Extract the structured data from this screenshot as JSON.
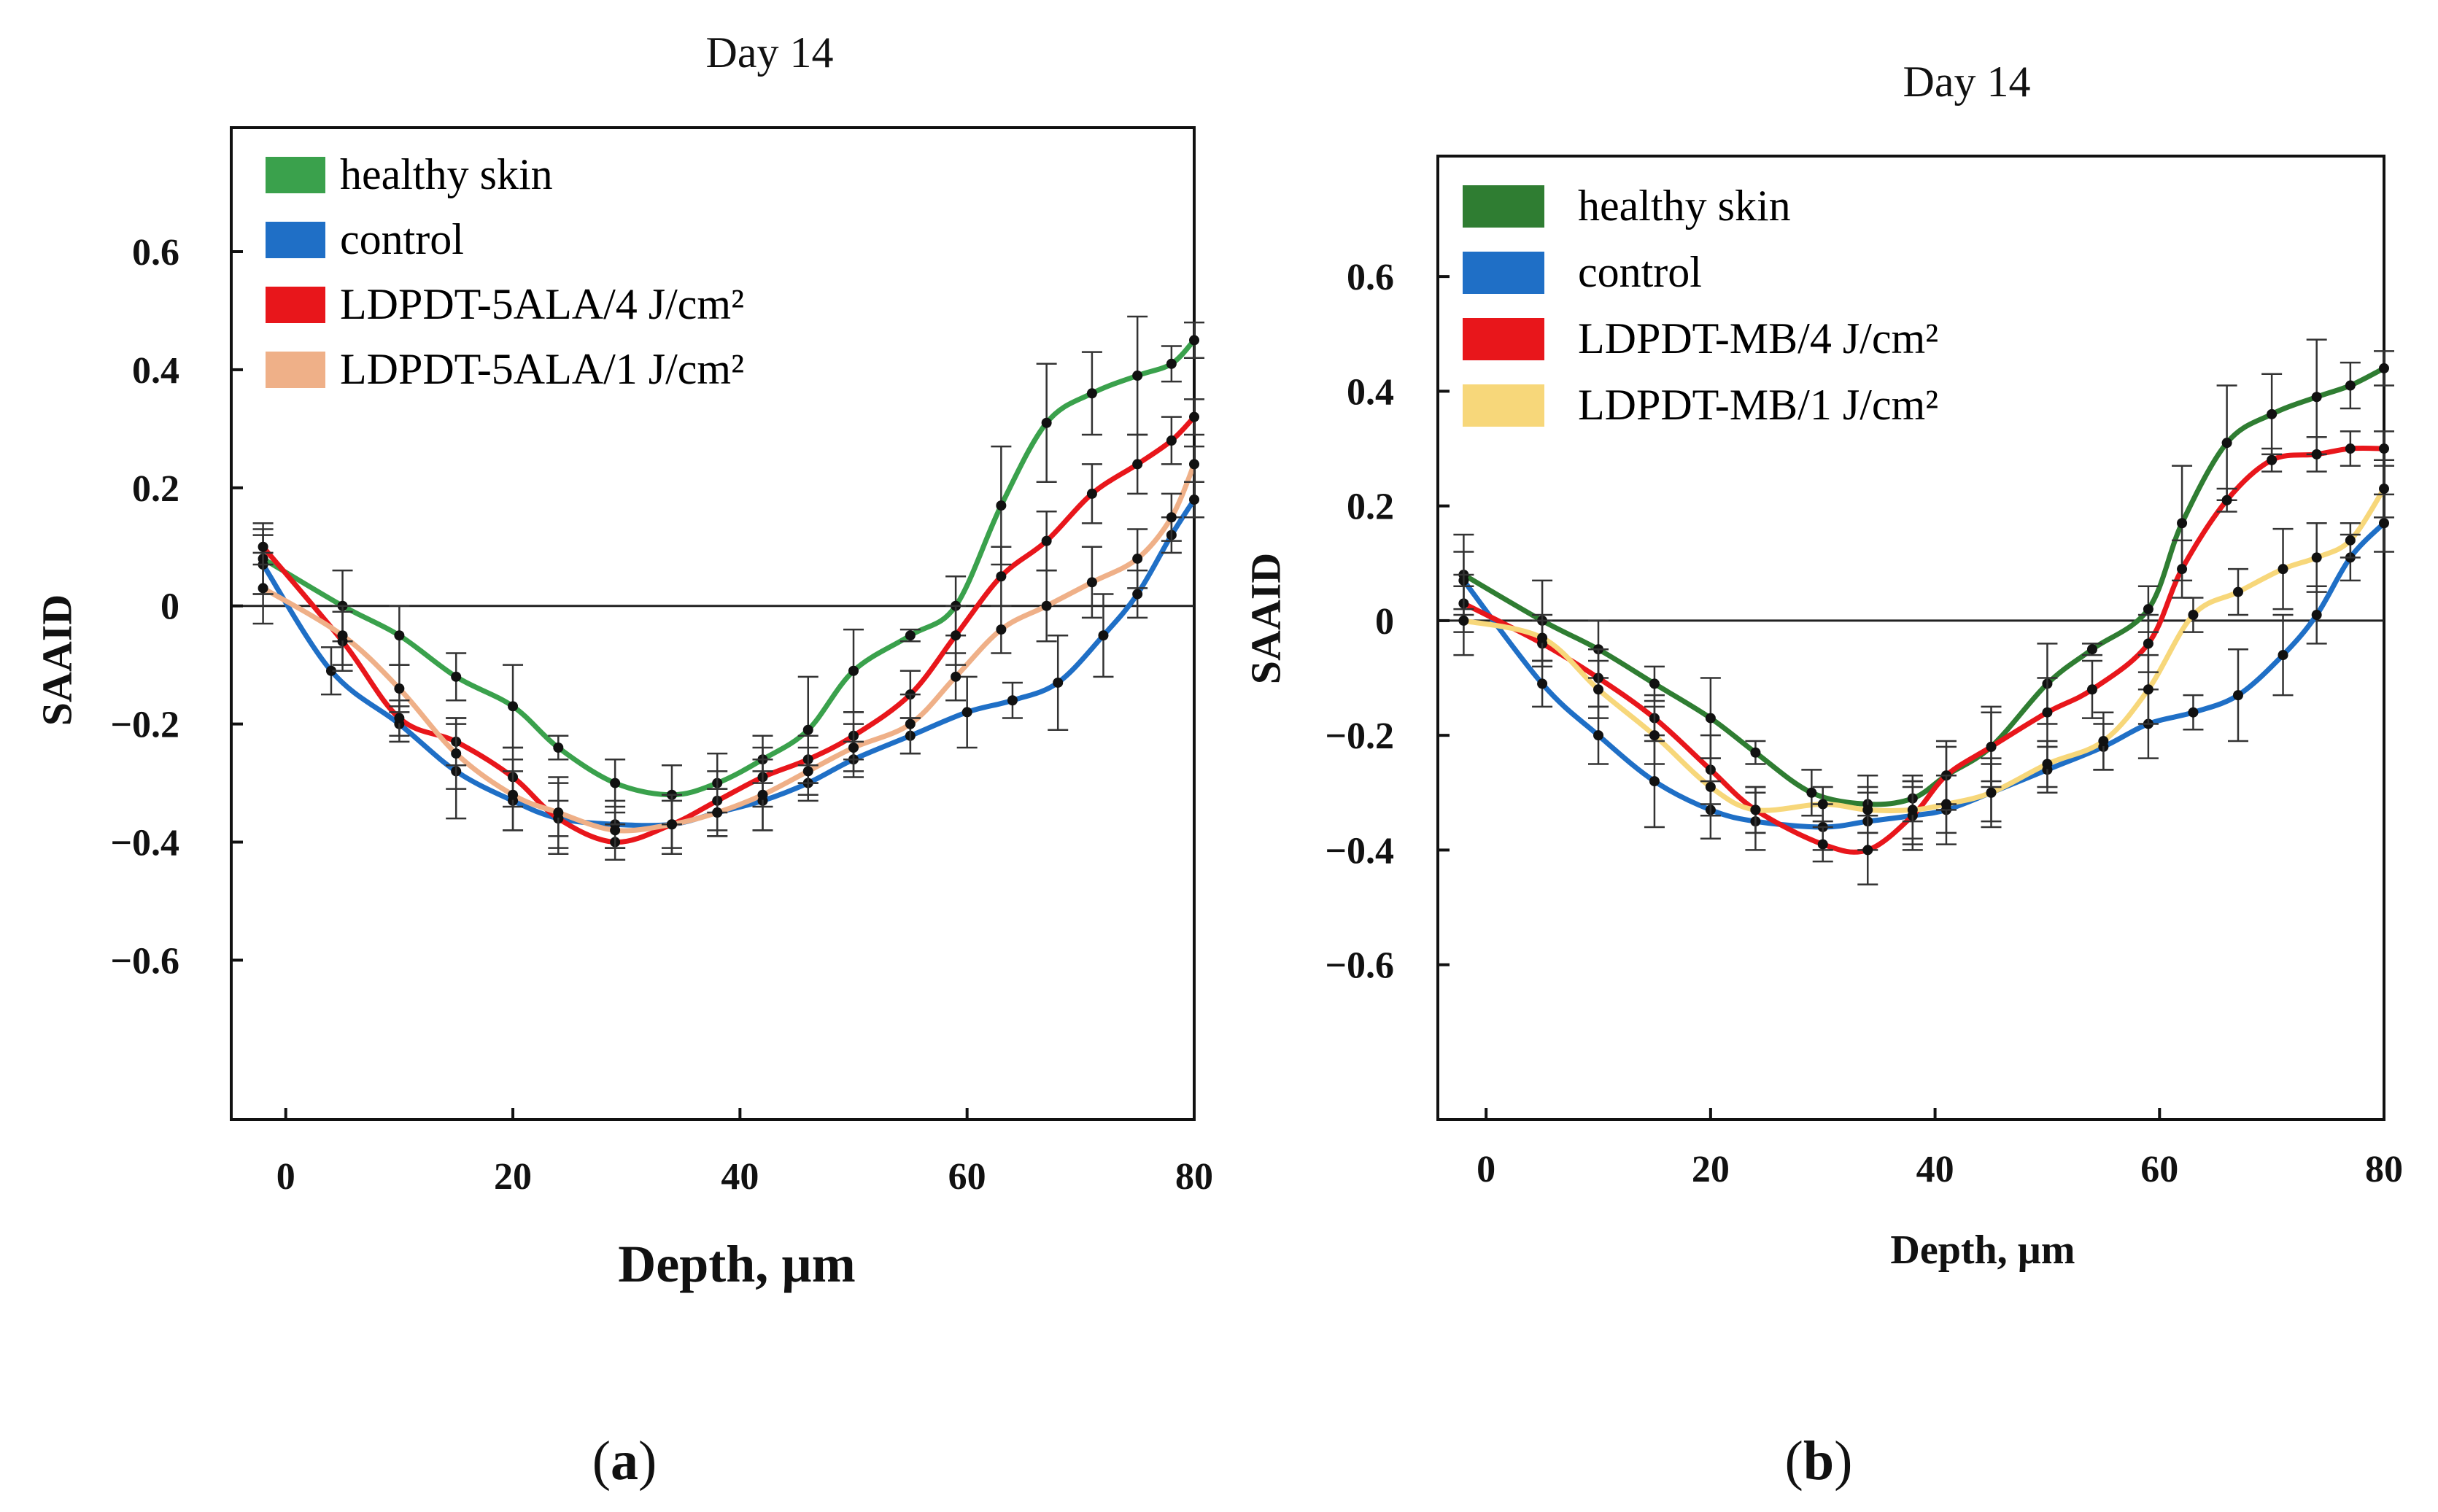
{
  "chart_data": [
    {
      "type": "line",
      "panel_label": "a",
      "title": "Day 14",
      "xlabel": "Depth, µm",
      "ylabel": "SAAID",
      "xlim": [
        -4.8,
        80
      ],
      "ylim": [
        -0.87,
        0.81
      ],
      "xticks": [
        0,
        20,
        40,
        60,
        80
      ],
      "yticks": [
        0.6,
        0.4,
        0.2,
        0,
        -0.2,
        -0.4,
        -0.6
      ],
      "ytick_labels": [
        "0.6",
        "0.4",
        "0.2",
        "0",
        "−0.2",
        "−0.4",
        "−0.6"
      ],
      "zero_line": true,
      "legend_position": "top-left",
      "series": [
        {
          "name": "healthy skin",
          "color": "#3aa14c",
          "x": [
            -2,
            5,
            10,
            15,
            20,
            24,
            29,
            34,
            38,
            42,
            46,
            50,
            55,
            59,
            63,
            67,
            71,
            75,
            78,
            80
          ],
          "y": [
            0.08,
            0.0,
            -0.05,
            -0.12,
            -0.17,
            -0.24,
            -0.3,
            -0.32,
            -0.3,
            -0.26,
            -0.21,
            -0.11,
            -0.05,
            0.0,
            0.17,
            0.31,
            0.36,
            0.39,
            0.41,
            0.45
          ],
          "err": [
            0.06,
            0.06,
            0.05,
            0.04,
            0.07,
            0.02,
            0.04,
            0.05,
            0.05,
            0.04,
            0.09,
            0.07,
            0.01,
            0.05,
            0.1,
            0.1,
            0.07,
            0.1,
            0.03,
            0.03
          ]
        },
        {
          "name": "control",
          "color": "#1f6fc6",
          "x": [
            -2,
            4,
            10,
            15,
            20,
            24,
            29,
            34,
            38,
            42,
            46,
            50,
            55,
            60,
            64,
            68,
            72,
            75,
            78,
            80
          ],
          "y": [
            0.07,
            -0.11,
            -0.2,
            -0.28,
            -0.33,
            -0.36,
            -0.37,
            -0.37,
            -0.35,
            -0.33,
            -0.3,
            -0.26,
            -0.22,
            -0.18,
            -0.16,
            -0.13,
            -0.05,
            0.02,
            0.12,
            0.18
          ],
          "err": [
            0.05,
            0.04,
            0.03,
            0.08,
            0.05,
            0.06,
            0.04,
            0.05,
            0.04,
            0.05,
            0.03,
            0.03,
            0.03,
            0.06,
            0.03,
            0.08,
            0.07,
            0.04,
            0.03,
            0.03
          ]
        },
        {
          "name": "LDPDT-5ALA/4 J/cm²",
          "color": "#e8161b",
          "x": [
            -2,
            5,
            10,
            15,
            20,
            24,
            29,
            34,
            38,
            42,
            46,
            50,
            55,
            59,
            63,
            67,
            71,
            75,
            78,
            80
          ],
          "y": [
            0.1,
            -0.06,
            -0.19,
            -0.23,
            -0.29,
            -0.36,
            -0.4,
            -0.37,
            -0.33,
            -0.29,
            -0.26,
            -0.22,
            -0.15,
            -0.05,
            0.05,
            0.11,
            0.19,
            0.24,
            0.28,
            0.32
          ],
          "err": [
            0.03,
            0.05,
            0.03,
            0.04,
            0.05,
            0.03,
            0.03,
            0.05,
            0.05,
            0.05,
            0.04,
            0.04,
            0.04,
            0.05,
            0.05,
            0.05,
            0.05,
            0.05,
            0.04,
            0.03
          ]
        },
        {
          "name": "LDPDT-5ALA/1 J/cm²",
          "color": "#efb088",
          "x": [
            -2,
            5,
            10,
            15,
            20,
            24,
            29,
            34,
            38,
            42,
            46,
            50,
            55,
            59,
            63,
            67,
            71,
            75,
            78,
            80
          ],
          "y": [
            0.03,
            -0.05,
            -0.14,
            -0.25,
            -0.32,
            -0.35,
            -0.38,
            -0.37,
            -0.35,
            -0.32,
            -0.28,
            -0.24,
            -0.2,
            -0.12,
            -0.04,
            0.0,
            0.04,
            0.08,
            0.15,
            0.24
          ],
          "err": [
            0.06,
            0.05,
            0.04,
            0.06,
            0.06,
            0.06,
            0.03,
            0.04,
            0.04,
            0.06,
            0.04,
            0.04,
            0.05,
            0.04,
            0.04,
            0.06,
            0.06,
            0.05,
            0.04,
            0.03
          ]
        }
      ]
    },
    {
      "type": "line",
      "panel_label": "b",
      "title": "Day 14",
      "xlabel": "Depth, µm",
      "ylabel": "SAAID",
      "xlim": [
        -4.3,
        80
      ],
      "ylim": [
        -0.87,
        0.81
      ],
      "xticks": [
        0,
        20,
        40,
        60,
        80
      ],
      "yticks": [
        0.6,
        0.4,
        0.2,
        0,
        -0.2,
        -0.4,
        -0.6
      ],
      "ytick_labels": [
        "0.6",
        "0.4",
        "0.2",
        "0",
        "−0.2",
        "−0.4",
        "−0.6"
      ],
      "zero_line": true,
      "legend_position": "top-left",
      "series": [
        {
          "name": "healthy skin",
          "color": "#2f7d32",
          "x": [
            -2,
            5,
            10,
            15,
            20,
            24,
            29,
            34,
            38,
            41,
            45,
            50,
            54,
            59,
            62,
            66,
            70,
            74,
            77,
            80
          ],
          "y": [
            0.08,
            0.0,
            -0.05,
            -0.11,
            -0.17,
            -0.23,
            -0.3,
            -0.32,
            -0.31,
            -0.27,
            -0.22,
            -0.11,
            -0.05,
            0.02,
            0.17,
            0.31,
            0.36,
            0.39,
            0.41,
            0.44
          ],
          "err": [
            0.07,
            0.07,
            0.05,
            0.03,
            0.07,
            0.02,
            0.04,
            0.05,
            0.04,
            0.05,
            0.07,
            0.07,
            0.01,
            0.04,
            0.1,
            0.1,
            0.07,
            0.1,
            0.04,
            0.03
          ]
        },
        {
          "name": "control",
          "color": "#1f6fc6",
          "x": [
            -2,
            5,
            10,
            15,
            20,
            24,
            30,
            34,
            38,
            41,
            45,
            50,
            55,
            59,
            63,
            67,
            71,
            74,
            77,
            80
          ],
          "y": [
            0.07,
            -0.11,
            -0.2,
            -0.28,
            -0.33,
            -0.35,
            -0.36,
            -0.35,
            -0.34,
            -0.33,
            -0.3,
            -0.26,
            -0.22,
            -0.18,
            -0.16,
            -0.13,
            -0.06,
            0.01,
            0.11,
            0.17
          ],
          "err": [
            0.05,
            0.04,
            0.05,
            0.08,
            0.05,
            0.05,
            0.04,
            0.05,
            0.05,
            0.06,
            0.06,
            0.04,
            0.04,
            0.06,
            0.03,
            0.08,
            0.07,
            0.05,
            0.04,
            0.05
          ]
        },
        {
          "name": "LDPDT-MB/4 J/cm²",
          "color": "#e8161b",
          "x": [
            -2,
            5,
            10,
            15,
            20,
            24,
            30,
            34,
            38,
            41,
            45,
            50,
            54,
            59,
            62,
            66,
            70,
            74,
            77,
            80
          ],
          "y": [
            0.03,
            -0.04,
            -0.1,
            -0.17,
            -0.26,
            -0.33,
            -0.39,
            -0.4,
            -0.34,
            -0.27,
            -0.22,
            -0.16,
            -0.12,
            -0.04,
            0.09,
            0.21,
            0.28,
            0.29,
            0.3,
            0.3
          ],
          "err": [
            0.05,
            0.04,
            0.05,
            0.04,
            0.06,
            0.04,
            0.03,
            0.06,
            0.06,
            0.06,
            0.06,
            0.06,
            0.05,
            0.05,
            0.05,
            0.02,
            0.02,
            0.03,
            0.03,
            0.03
          ]
        },
        {
          "name": "LDPDT-MB/1 J/cm²",
          "color": "#f7d77a",
          "x": [
            -2,
            5,
            10,
            15,
            20,
            24,
            30,
            34,
            38,
            41,
            45,
            50,
            55,
            59,
            63,
            67,
            71,
            74,
            77,
            80
          ],
          "y": [
            0.0,
            -0.03,
            -0.12,
            -0.2,
            -0.29,
            -0.33,
            -0.32,
            -0.33,
            -0.33,
            -0.32,
            -0.3,
            -0.25,
            -0.21,
            -0.12,
            0.01,
            0.05,
            0.09,
            0.11,
            0.14,
            0.23
          ],
          "err": [
            0.06,
            0.04,
            0.05,
            0.05,
            0.05,
            0.04,
            0.03,
            0.04,
            0.05,
            0.05,
            0.05,
            0.04,
            0.05,
            0.06,
            0.03,
            0.04,
            0.07,
            0.06,
            0.03,
            0.05
          ]
        }
      ]
    }
  ]
}
